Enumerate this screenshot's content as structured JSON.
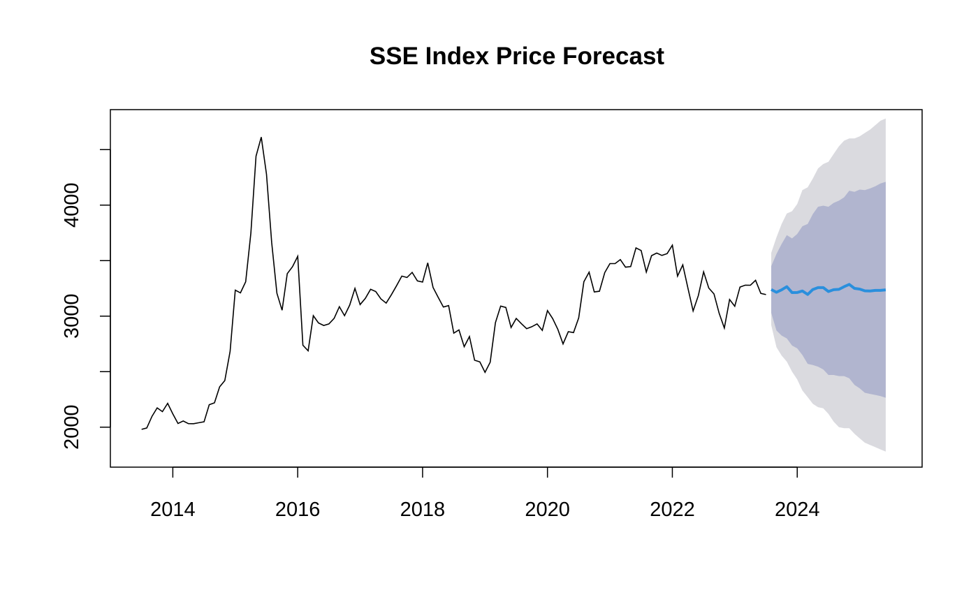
{
  "chart_data": {
    "type": "line",
    "title": "SSE Index Price Forecast",
    "xlabel": "",
    "ylabel": "",
    "xlim": [
      2013.0,
      2026.0
    ],
    "ylim": [
      1640,
      4860
    ],
    "x_ticks": [
      2014,
      2016,
      2018,
      2020,
      2022,
      2024
    ],
    "x_tick_labels": [
      "2014",
      "2016",
      "2018",
      "2020",
      "2022",
      "2024"
    ],
    "y_ticks": [
      2000,
      2500,
      3000,
      3500,
      4000,
      4500
    ],
    "y_tick_labels": [
      "2000",
      "",
      "3000",
      "",
      "4000",
      ""
    ],
    "grid": false,
    "legend": "none",
    "colors": {
      "history": "#000000",
      "forecast": "#2a8fdd",
      "band_80": "#b1b5cf",
      "band_95": "#dadadf"
    },
    "series": [
      {
        "role": "history",
        "x": [
          2013.5,
          2013.583,
          2013.667,
          2013.75,
          2013.833,
          2013.917,
          2014.0,
          2014.083,
          2014.167,
          2014.25,
          2014.333,
          2014.417,
          2014.5,
          2014.583,
          2014.667,
          2014.75,
          2014.833,
          2014.917,
          2015.0,
          2015.083,
          2015.167,
          2015.25,
          2015.333,
          2015.417,
          2015.5,
          2015.583,
          2015.667,
          2015.75,
          2015.833,
          2015.917,
          2016.0,
          2016.083,
          2016.167,
          2016.25,
          2016.333,
          2016.417,
          2016.5,
          2016.583,
          2016.667,
          2016.75,
          2016.833,
          2016.917,
          2017.0,
          2017.083,
          2017.167,
          2017.25,
          2017.333,
          2017.417,
          2017.5,
          2017.583,
          2017.667,
          2017.75,
          2017.833,
          2017.917,
          2018.0,
          2018.083,
          2018.167,
          2018.25,
          2018.333,
          2018.417,
          2018.5,
          2018.583,
          2018.667,
          2018.75,
          2018.833,
          2018.917,
          2019.0,
          2019.083,
          2019.167,
          2019.25,
          2019.333,
          2019.417,
          2019.5,
          2019.583,
          2019.667,
          2019.75,
          2019.833,
          2019.917,
          2020.0,
          2020.083,
          2020.167,
          2020.25,
          2020.333,
          2020.417,
          2020.5,
          2020.583,
          2020.667,
          2020.75,
          2020.833,
          2020.917,
          2021.0,
          2021.083,
          2021.167,
          2021.25,
          2021.333,
          2021.417,
          2021.5,
          2021.583,
          2021.667,
          2021.75,
          2021.833,
          2021.917,
          2022.0,
          2022.083,
          2022.167,
          2022.25,
          2022.333,
          2022.417,
          2022.5,
          2022.583,
          2022.667,
          2022.75,
          2022.833,
          2022.917,
          2023.0,
          2023.083,
          2023.167,
          2023.25,
          2023.333,
          2023.417,
          2023.5
        ],
        "values": [
          1980,
          1993,
          2098,
          2174,
          2140,
          2215,
          2120,
          2033,
          2056,
          2032,
          2031,
          2040,
          2048,
          2202,
          2219,
          2363,
          2420,
          2683,
          3234,
          3210,
          3310,
          3747,
          4441,
          4612,
          4277,
          3664,
          3206,
          3053,
          3383,
          3445,
          3539,
          2738,
          2688,
          3004,
          2939,
          2916,
          2930,
          2980,
          3085,
          3004,
          3100,
          3250,
          3104,
          3160,
          3242,
          3222,
          3155,
          3117,
          3192,
          3273,
          3361,
          3348,
          3394,
          3317,
          3307,
          3480,
          3259,
          3169,
          3082,
          3095,
          2847,
          2876,
          2725,
          2816,
          2603,
          2588,
          2494,
          2585,
          2941,
          3091,
          3078,
          2898,
          2979,
          2932,
          2887,
          2905,
          2930,
          2872,
          3050,
          2978,
          2880,
          2750,
          2860,
          2852,
          2984,
          3310,
          3396,
          3218,
          3224,
          3392,
          3473,
          3473,
          3509,
          3441,
          3446,
          3615,
          3591,
          3397,
          3545,
          3568,
          3547,
          3563,
          3639,
          3361,
          3462,
          3251,
          3047,
          3186,
          3399,
          3253,
          3200,
          3025,
          2893,
          3150,
          3089,
          3262,
          3279,
          3278,
          3323,
          3205,
          3194
        ]
      },
      {
        "role": "forecast",
        "x": [
          2023.583,
          2023.667,
          2023.75,
          2023.833,
          2023.917,
          2024.0,
          2024.083,
          2024.167,
          2024.25,
          2024.333,
          2024.417,
          2024.5,
          2024.583,
          2024.667,
          2024.75,
          2024.833,
          2024.917,
          2025.0,
          2025.083,
          2025.167,
          2025.25,
          2025.333,
          2025.417
        ],
        "values": [
          3240,
          3215,
          3237,
          3265,
          3212,
          3213,
          3227,
          3195,
          3240,
          3257,
          3257,
          3222,
          3238,
          3241,
          3265,
          3286,
          3250,
          3244,
          3228,
          3227,
          3232,
          3232,
          3237
        ],
        "lo80": [
          3030,
          2870,
          2825,
          2800,
          2735,
          2710,
          2650,
          2570,
          2560,
          2545,
          2520,
          2470,
          2470,
          2460,
          2460,
          2440,
          2380,
          2350,
          2310,
          2300,
          2290,
          2280,
          2265
        ],
        "hi80": [
          3450,
          3560,
          3650,
          3730,
          3700,
          3740,
          3810,
          3830,
          3920,
          3985,
          3995,
          3985,
          4020,
          4040,
          4070,
          4130,
          4120,
          4140,
          4135,
          4150,
          4170,
          4195,
          4210
        ],
        "lo95": [
          2920,
          2720,
          2645,
          2590,
          2500,
          2430,
          2330,
          2270,
          2210,
          2180,
          2170,
          2120,
          2050,
          2000,
          1990,
          1990,
          1940,
          1900,
          1860,
          1840,
          1820,
          1800,
          1780
        ],
        "hi95": [
          3570,
          3710,
          3830,
          3925,
          3945,
          4010,
          4135,
          4160,
          4240,
          4330,
          4370,
          4390,
          4460,
          4530,
          4580,
          4600,
          4600,
          4620,
          4650,
          4680,
          4720,
          4760,
          4780
        ]
      }
    ]
  }
}
